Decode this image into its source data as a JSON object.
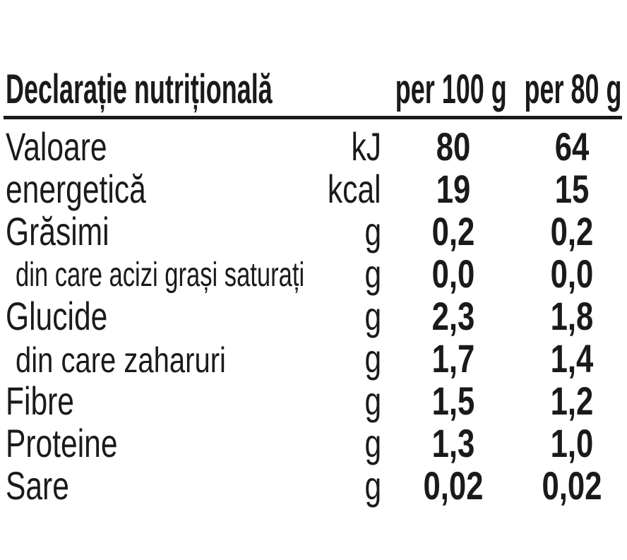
{
  "header": {
    "title": "Declarație nutrițională",
    "col1": "per 100 g",
    "col2": "per 80 g"
  },
  "rows": [
    {
      "label": "Valoare",
      "unit": "kJ",
      "per100": "80",
      "per80": "64"
    },
    {
      "label": "energetică",
      "unit": "kcal",
      "per100": "19",
      "per80": "15"
    },
    {
      "label": "Grăsimi",
      "unit": "g",
      "per100": "0,2",
      "per80": "0,2"
    },
    {
      "label": "din care acizi grași saturați",
      "unit": "g",
      "per100": "0,0",
      "per80": "0,0"
    },
    {
      "label": "Glucide",
      "unit": "g",
      "per100": "2,3",
      "per80": "1,8"
    },
    {
      "label": "din care zaharuri",
      "unit": "g",
      "per100": "1,7",
      "per80": "1,4"
    },
    {
      "label": "Fibre",
      "unit": "g",
      "per100": "1,5",
      "per80": "1,2"
    },
    {
      "label": "Proteine",
      "unit": "g",
      "per100": "1,3",
      "per80": "1,0"
    },
    {
      "label": "Sare",
      "unit": "g",
      "per100": "0,02",
      "per80": "0,02"
    }
  ]
}
